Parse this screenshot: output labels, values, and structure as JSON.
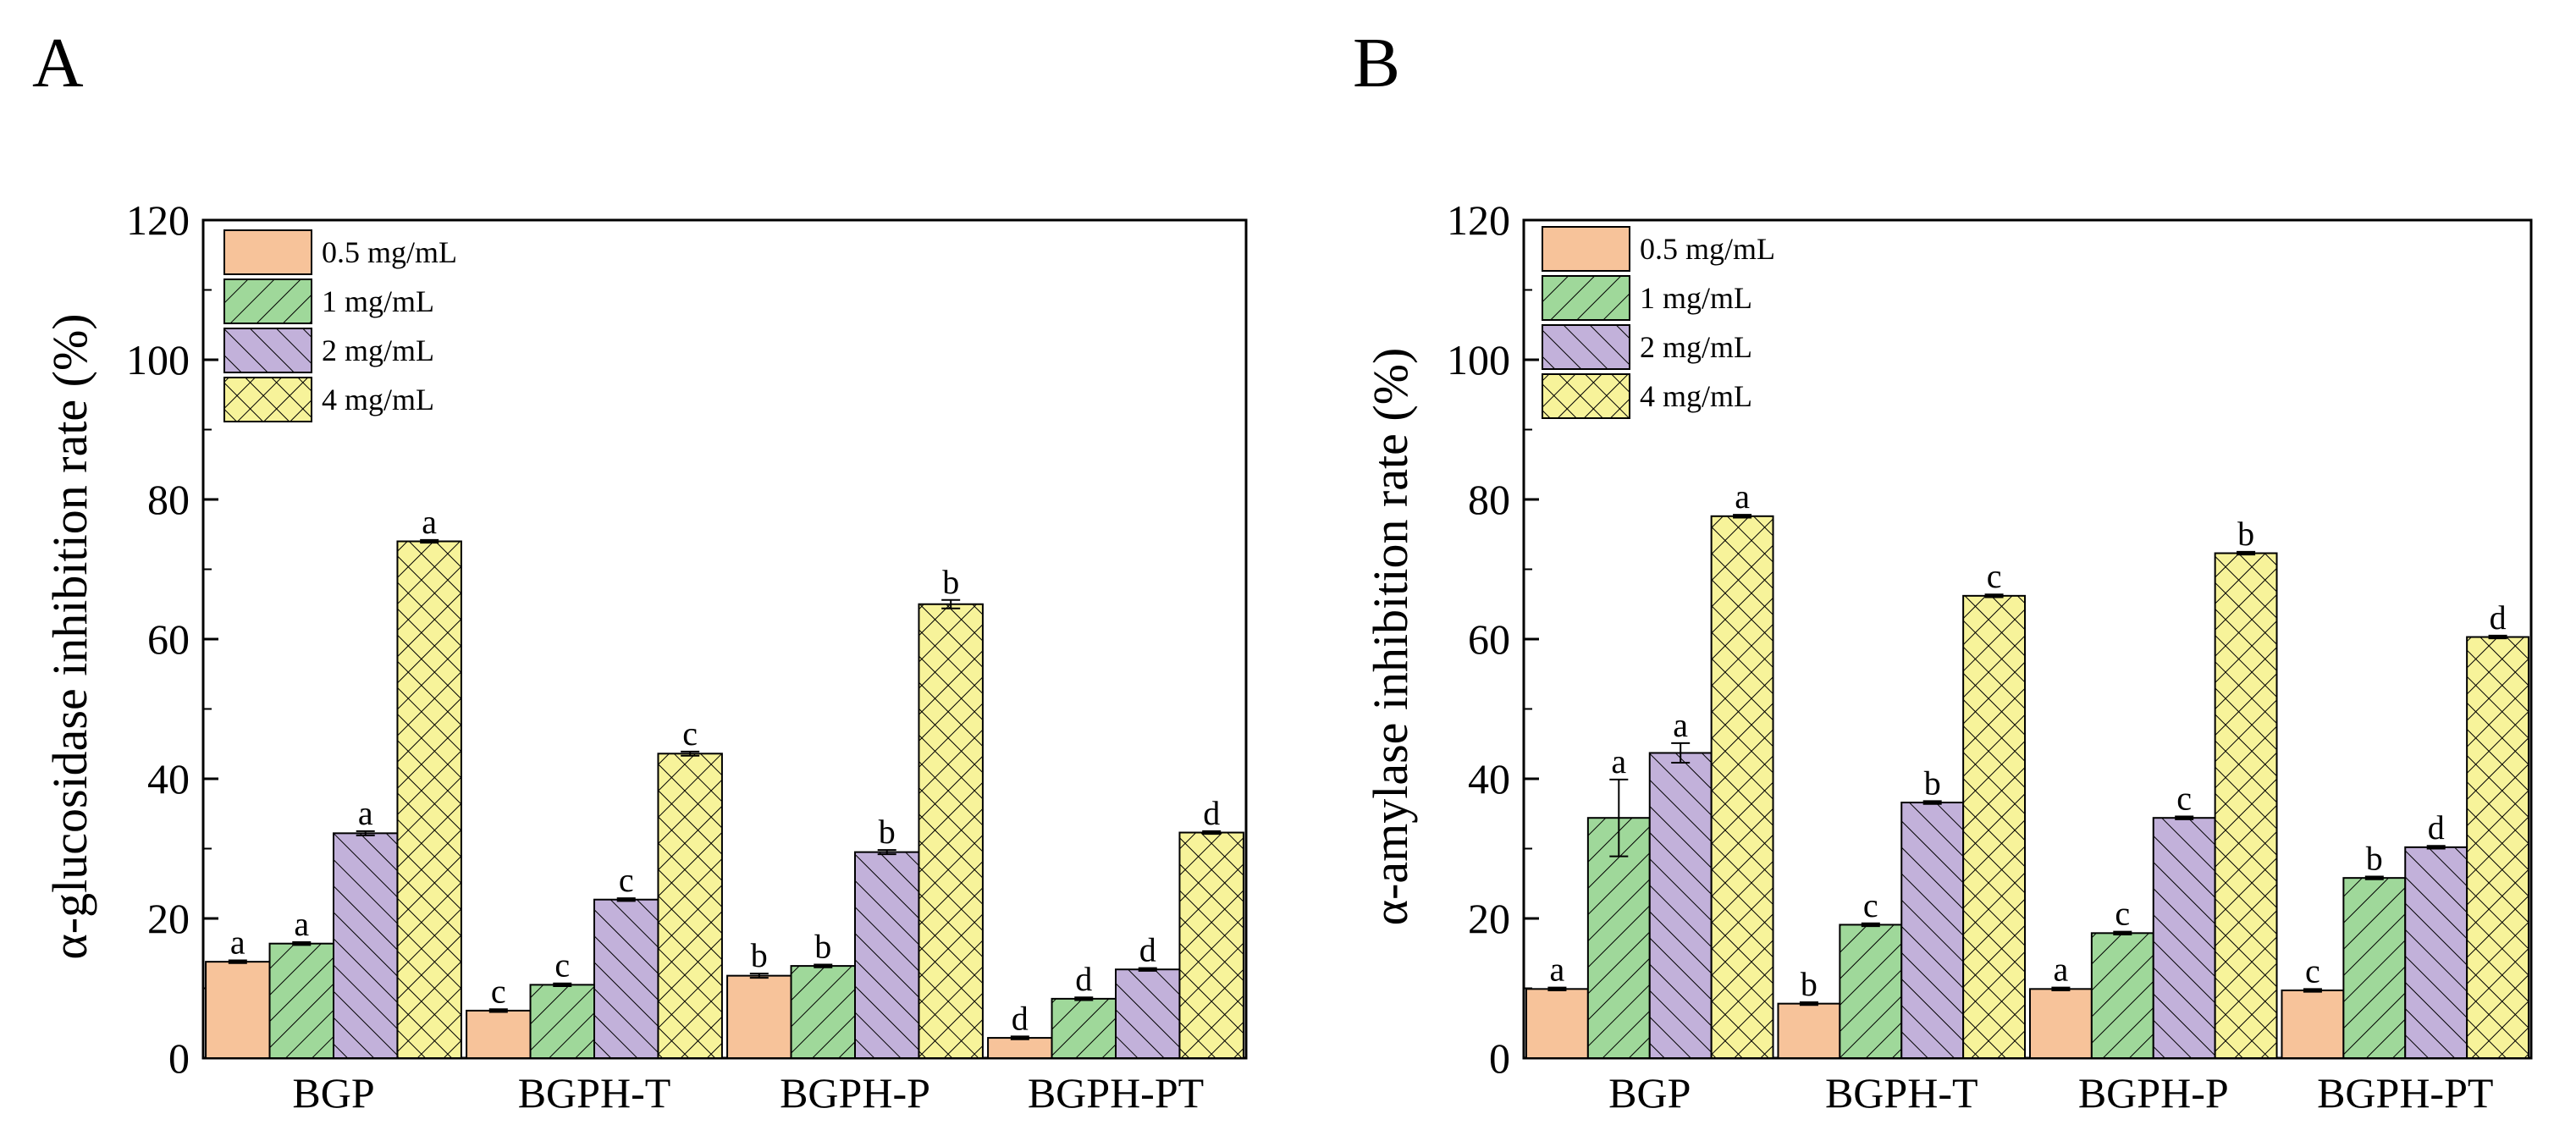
{
  "colors": {
    "0.5 mg/mL": "#f7c39a",
    "1 mg/mL": "#9fd89a",
    "2 mg/mL": "#c2b1da",
    "4 mg/mL": "#f7f39a",
    "pattern_0.5 mg/mL": "none",
    "pattern_1 mg/mL": "fwd",
    "pattern_2 mg/mL": "back",
    "pattern_4 mg/mL": "cross"
  },
  "chart_data": [
    {
      "type": "bar",
      "panel": "A",
      "ylabel": "α-glucosidase inhibition rate (%)",
      "xlabel": "",
      "ylim": [
        0,
        120
      ],
      "yticks": [
        0,
        20,
        40,
        60,
        80,
        100,
        120
      ],
      "categories": [
        "BGP",
        "BGPH-T",
        "BGPH-P",
        "BGPH-PT"
      ],
      "legend_position": "top-left",
      "series": [
        {
          "name": "0.5 mg/mL",
          "values": [
            13.8,
            6.8,
            11.8,
            2.9
          ],
          "errors": [
            0.2,
            0.2,
            0.3,
            0.2
          ],
          "letters": [
            "a",
            "c",
            "b",
            "d"
          ]
        },
        {
          "name": "1 mg/mL",
          "values": [
            16.4,
            10.5,
            13.2,
            8.5
          ],
          "errors": [
            0.2,
            0.2,
            0.2,
            0.2
          ],
          "letters": [
            "a",
            "c",
            "b",
            "d"
          ]
        },
        {
          "name": "2 mg/mL",
          "values": [
            32.2,
            22.7,
            29.5,
            12.7
          ],
          "errors": [
            0.3,
            0.2,
            0.3,
            0.2
          ],
          "letters": [
            "a",
            "c",
            "b",
            "d"
          ]
        },
        {
          "name": "4 mg/mL",
          "values": [
            74.0,
            43.6,
            65.0,
            32.3
          ],
          "errors": [
            0.2,
            0.3,
            0.6,
            0.2
          ],
          "letters": [
            "a",
            "c",
            "b",
            "d"
          ]
        }
      ]
    },
    {
      "type": "bar",
      "panel": "B",
      "ylabel": "α-amylase inhibition rate (%)",
      "xlabel": "",
      "ylim": [
        0,
        120
      ],
      "yticks": [
        0,
        20,
        40,
        60,
        80,
        100,
        120
      ],
      "categories": [
        "BGP",
        "BGPH-T",
        "BGPH-P",
        "BGPH-PT"
      ],
      "legend_position": "top-left",
      "series": [
        {
          "name": "0.5 mg/mL",
          "values": [
            9.9,
            7.8,
            9.9,
            9.7
          ],
          "errors": [
            0.2,
            0.2,
            0.2,
            0.2
          ],
          "letters": [
            "a",
            "b",
            "a",
            "c"
          ]
        },
        {
          "name": "1 mg/mL",
          "values": [
            34.4,
            19.1,
            17.9,
            25.8
          ],
          "errors": [
            5.5,
            0.2,
            0.2,
            0.2
          ],
          "letters": [
            "a",
            "c",
            "c",
            "b"
          ]
        },
        {
          "name": "2 mg/mL",
          "values": [
            43.7,
            36.6,
            34.4,
            30.2
          ],
          "errors": [
            1.4,
            0.2,
            0.2,
            0.2
          ],
          "letters": [
            "a",
            "b",
            "c",
            "d"
          ]
        },
        {
          "name": "4 mg/mL",
          "values": [
            77.6,
            66.2,
            72.3,
            60.3
          ],
          "errors": [
            0.2,
            0.2,
            0.2,
            0.2
          ],
          "letters": [
            "a",
            "c",
            "b",
            "d"
          ]
        }
      ]
    }
  ]
}
